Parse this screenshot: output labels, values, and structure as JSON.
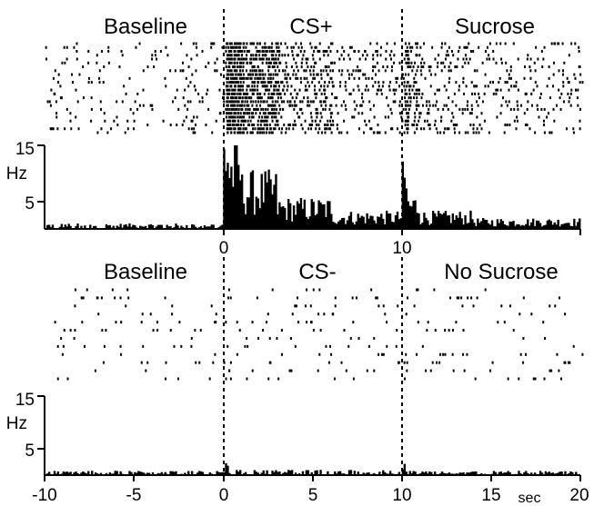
{
  "chart_data": [
    {
      "type": "bar",
      "panel": "top",
      "period_labels": [
        "Baseline",
        "CS+",
        "Sucrose"
      ],
      "ylabel": "Hz",
      "y_ticks": [
        5,
        15
      ],
      "ylim": [
        0,
        15
      ],
      "xlim": [
        -10,
        20
      ],
      "x_ticks": [
        0,
        10
      ],
      "event_lines": [
        0,
        10
      ],
      "raster_trials": 24,
      "series": [
        {
          "bin_width_sec": 0.1,
          "segments": [
            {
              "from": -10,
              "to": 0,
              "mean_rate": 0.6
            },
            {
              "from": 0,
              "to": 0.3,
              "mean_rate": 13
            },
            {
              "from": 0.3,
              "to": 1,
              "mean_rate": 10
            },
            {
              "from": 1,
              "to": 3,
              "mean_rate": 6.5
            },
            {
              "from": 3,
              "to": 6,
              "mean_rate": 3.5
            },
            {
              "from": 6,
              "to": 10,
              "mean_rate": 2
            },
            {
              "from": 10,
              "to": 10.3,
              "mean_rate": 7.5
            },
            {
              "from": 10.3,
              "to": 11,
              "mean_rate": 4
            },
            {
              "from": 11,
              "to": 14,
              "mean_rate": 2
            },
            {
              "from": 14,
              "to": 20,
              "mean_rate": 1.2
            }
          ]
        }
      ]
    },
    {
      "type": "bar",
      "panel": "bottom",
      "period_labels": [
        "Baseline",
        "CS-",
        "No Sucrose"
      ],
      "ylabel": "Hz",
      "y_ticks": [
        5,
        15
      ],
      "ylim": [
        0,
        15
      ],
      "xlim": [
        -10,
        20
      ],
      "x_ticks": [
        -10,
        -5,
        0,
        5,
        10,
        15,
        20
      ],
      "x_unit": "sec",
      "event_lines": [
        0,
        10
      ],
      "raster_trials": 12,
      "series": [
        {
          "bin_width_sec": 0.1,
          "segments": [
            {
              "from": -10,
              "to": 0,
              "mean_rate": 0.5
            },
            {
              "from": 0,
              "to": 0.3,
              "mean_rate": 1.5
            },
            {
              "from": 0.3,
              "to": 10,
              "mean_rate": 0.6
            },
            {
              "from": 10,
              "to": 10.2,
              "mean_rate": 2.5
            },
            {
              "from": 10.2,
              "to": 20,
              "mean_rate": 0.5
            }
          ]
        }
      ]
    }
  ]
}
